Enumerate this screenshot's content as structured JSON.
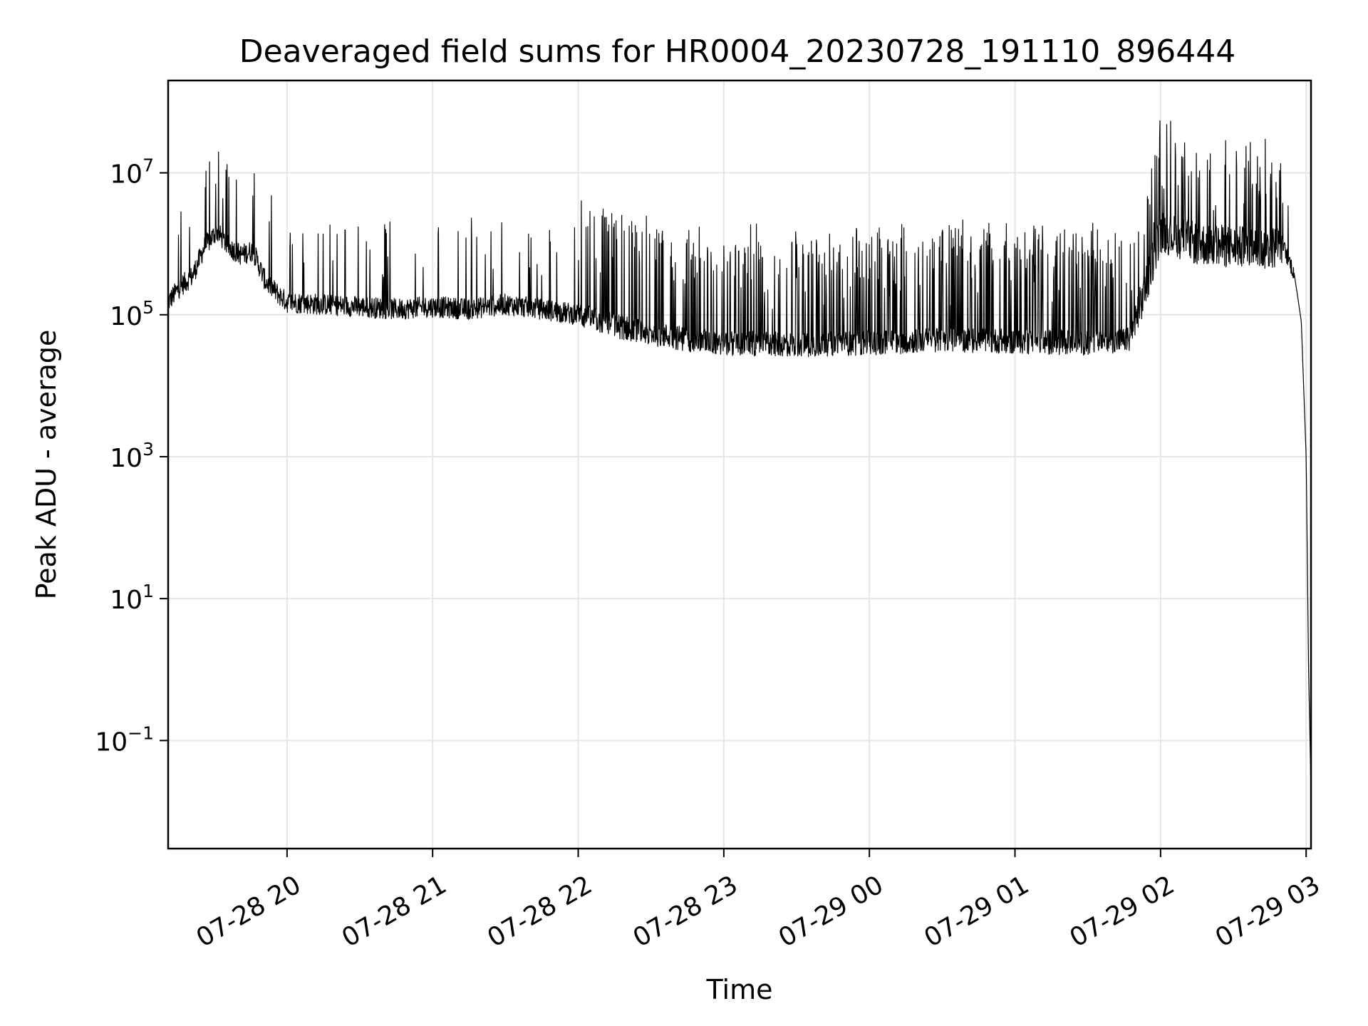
{
  "chart_data": {
    "type": "line",
    "title": "Deaveraged field sums for HR0004_20230728_191110_896444",
    "xlabel": "Time",
    "ylabel": "Peak ADU - average",
    "yscale": "log",
    "grid": true,
    "line_color": "#000000",
    "grid_color": "#e6e6e6",
    "x_ticks": [
      "07-28 20",
      "07-28 21",
      "07-28 22",
      "07-28 23",
      "07-29 00",
      "07-29 01",
      "07-29 02",
      "07-29 03"
    ],
    "y_ticks": [
      {
        "base": "10",
        "exp": "7"
      },
      {
        "base": "10",
        "exp": "5"
      },
      {
        "base": "10",
        "exp": "3"
      },
      {
        "base": "10",
        "exp": "1"
      },
      {
        "base": "10",
        "exp": "−1"
      }
    ],
    "xlim": [
      "2023-07-28 19:11",
      "2023-07-29 03:02"
    ],
    "ylim": [
      0.003,
      200000000
    ],
    "series": [
      {
        "x": [
          "2023-07-28 19:11",
          "2023-07-28 19:16",
          "2023-07-28 19:21",
          "2023-07-28 19:26",
          "2023-07-28 19:31",
          "2023-07-28 19:36",
          "2023-07-28 19:41",
          "2023-07-28 19:46",
          "2023-07-28 19:51",
          "2023-07-28 19:56",
          "2023-07-28 20:00",
          "2023-07-28 20:15",
          "2023-07-28 20:30",
          "2023-07-28 20:45",
          "2023-07-28 21:00",
          "2023-07-28 21:15",
          "2023-07-28 21:30",
          "2023-07-28 21:45",
          "2023-07-28 22:00",
          "2023-07-28 22:15",
          "2023-07-28 22:30",
          "2023-07-28 22:45",
          "2023-07-28 23:00",
          "2023-07-28 23:30",
          "2023-07-29 00:00",
          "2023-07-29 00:30",
          "2023-07-29 01:00",
          "2023-07-29 01:30",
          "2023-07-29 01:48",
          "2023-07-29 02:00",
          "2023-07-29 02:15",
          "2023-07-29 02:30",
          "2023-07-29 02:45",
          "2023-07-29 02:50",
          "2023-07-29 02:55",
          "2023-07-29 02:58",
          "2023-07-29 03:00",
          "2023-07-29 03:01",
          "2023-07-29 03:02"
        ],
        "y": [
          150000,
          250000,
          350000,
          900000,
          1500000,
          900000,
          700000,
          800000,
          300000,
          200000,
          150000,
          140000,
          130000,
          120000,
          130000,
          120000,
          140000,
          120000,
          100000,
          70000,
          55000,
          45000,
          40000,
          38000,
          40000,
          45000,
          42000,
          40000,
          45000,
          1500000,
          1000000,
          900000,
          850000,
          1000000,
          400000,
          80000,
          1000,
          1,
          0.02
        ]
      }
    ]
  }
}
